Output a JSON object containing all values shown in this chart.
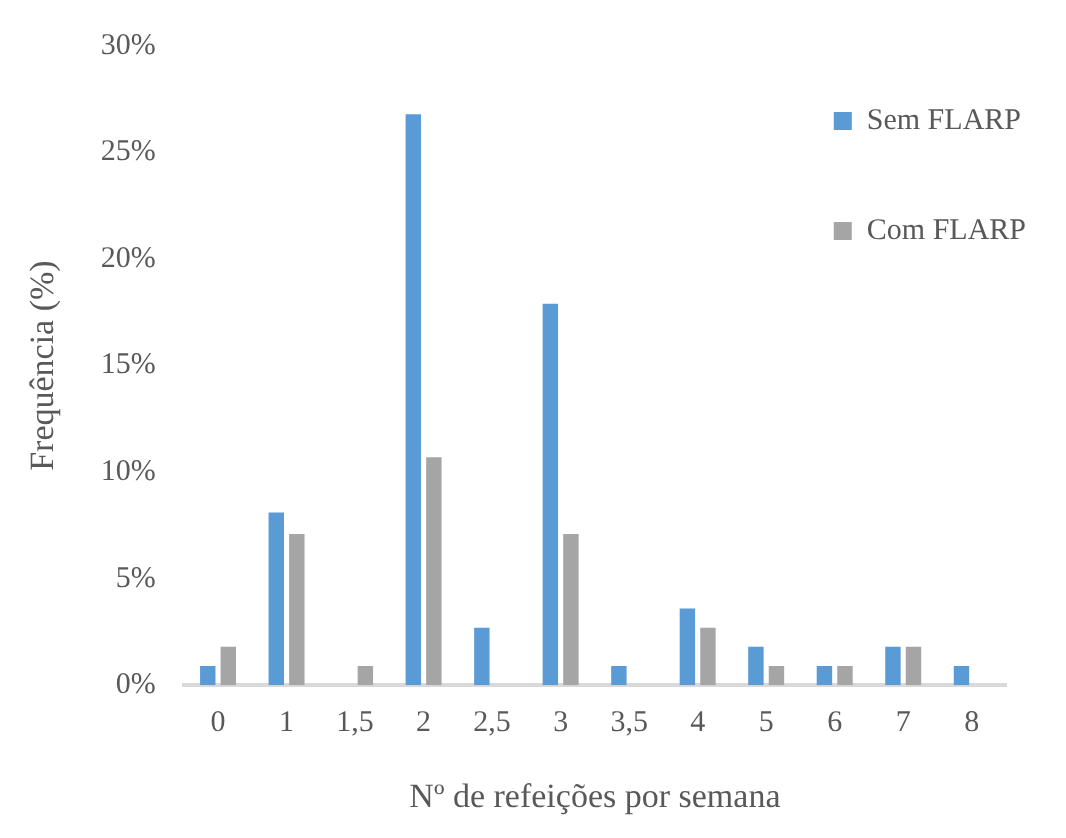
{
  "chart_data": {
    "type": "bar",
    "xlabel": "Nº de refeições por semana",
    "ylabel": "Frequência (%)",
    "categories": [
      "0",
      "1",
      "1,5",
      "2",
      "2,5",
      "3",
      "3,5",
      "4",
      "5",
      "6",
      "7",
      "8"
    ],
    "series": [
      {
        "name": "Sem FLARP",
        "color": "#5b9bd5",
        "values": [
          0.9,
          8.1,
          0,
          26.8,
          2.7,
          17.9,
          0.9,
          3.6,
          1.8,
          0.9,
          1.8,
          0.9
        ]
      },
      {
        "name": "Com FLARP",
        "color": "#a5a5a5",
        "values": [
          1.8,
          7.1,
          0.9,
          10.7,
          0,
          7.1,
          0,
          2.7,
          0.9,
          0.9,
          1.8,
          0
        ]
      }
    ],
    "ylim": [
      0,
      30
    ],
    "yticks": [
      {
        "value": 0,
        "label": "0%"
      },
      {
        "value": 5,
        "label": "5%"
      },
      {
        "value": 10,
        "label": "10%"
      },
      {
        "value": 15,
        "label": "15%"
      },
      {
        "value": 20,
        "label": "20%"
      },
      {
        "value": 25,
        "label": "25%"
      },
      {
        "value": 30,
        "label": "30%"
      }
    ],
    "grid": false,
    "legend": "top right"
  }
}
